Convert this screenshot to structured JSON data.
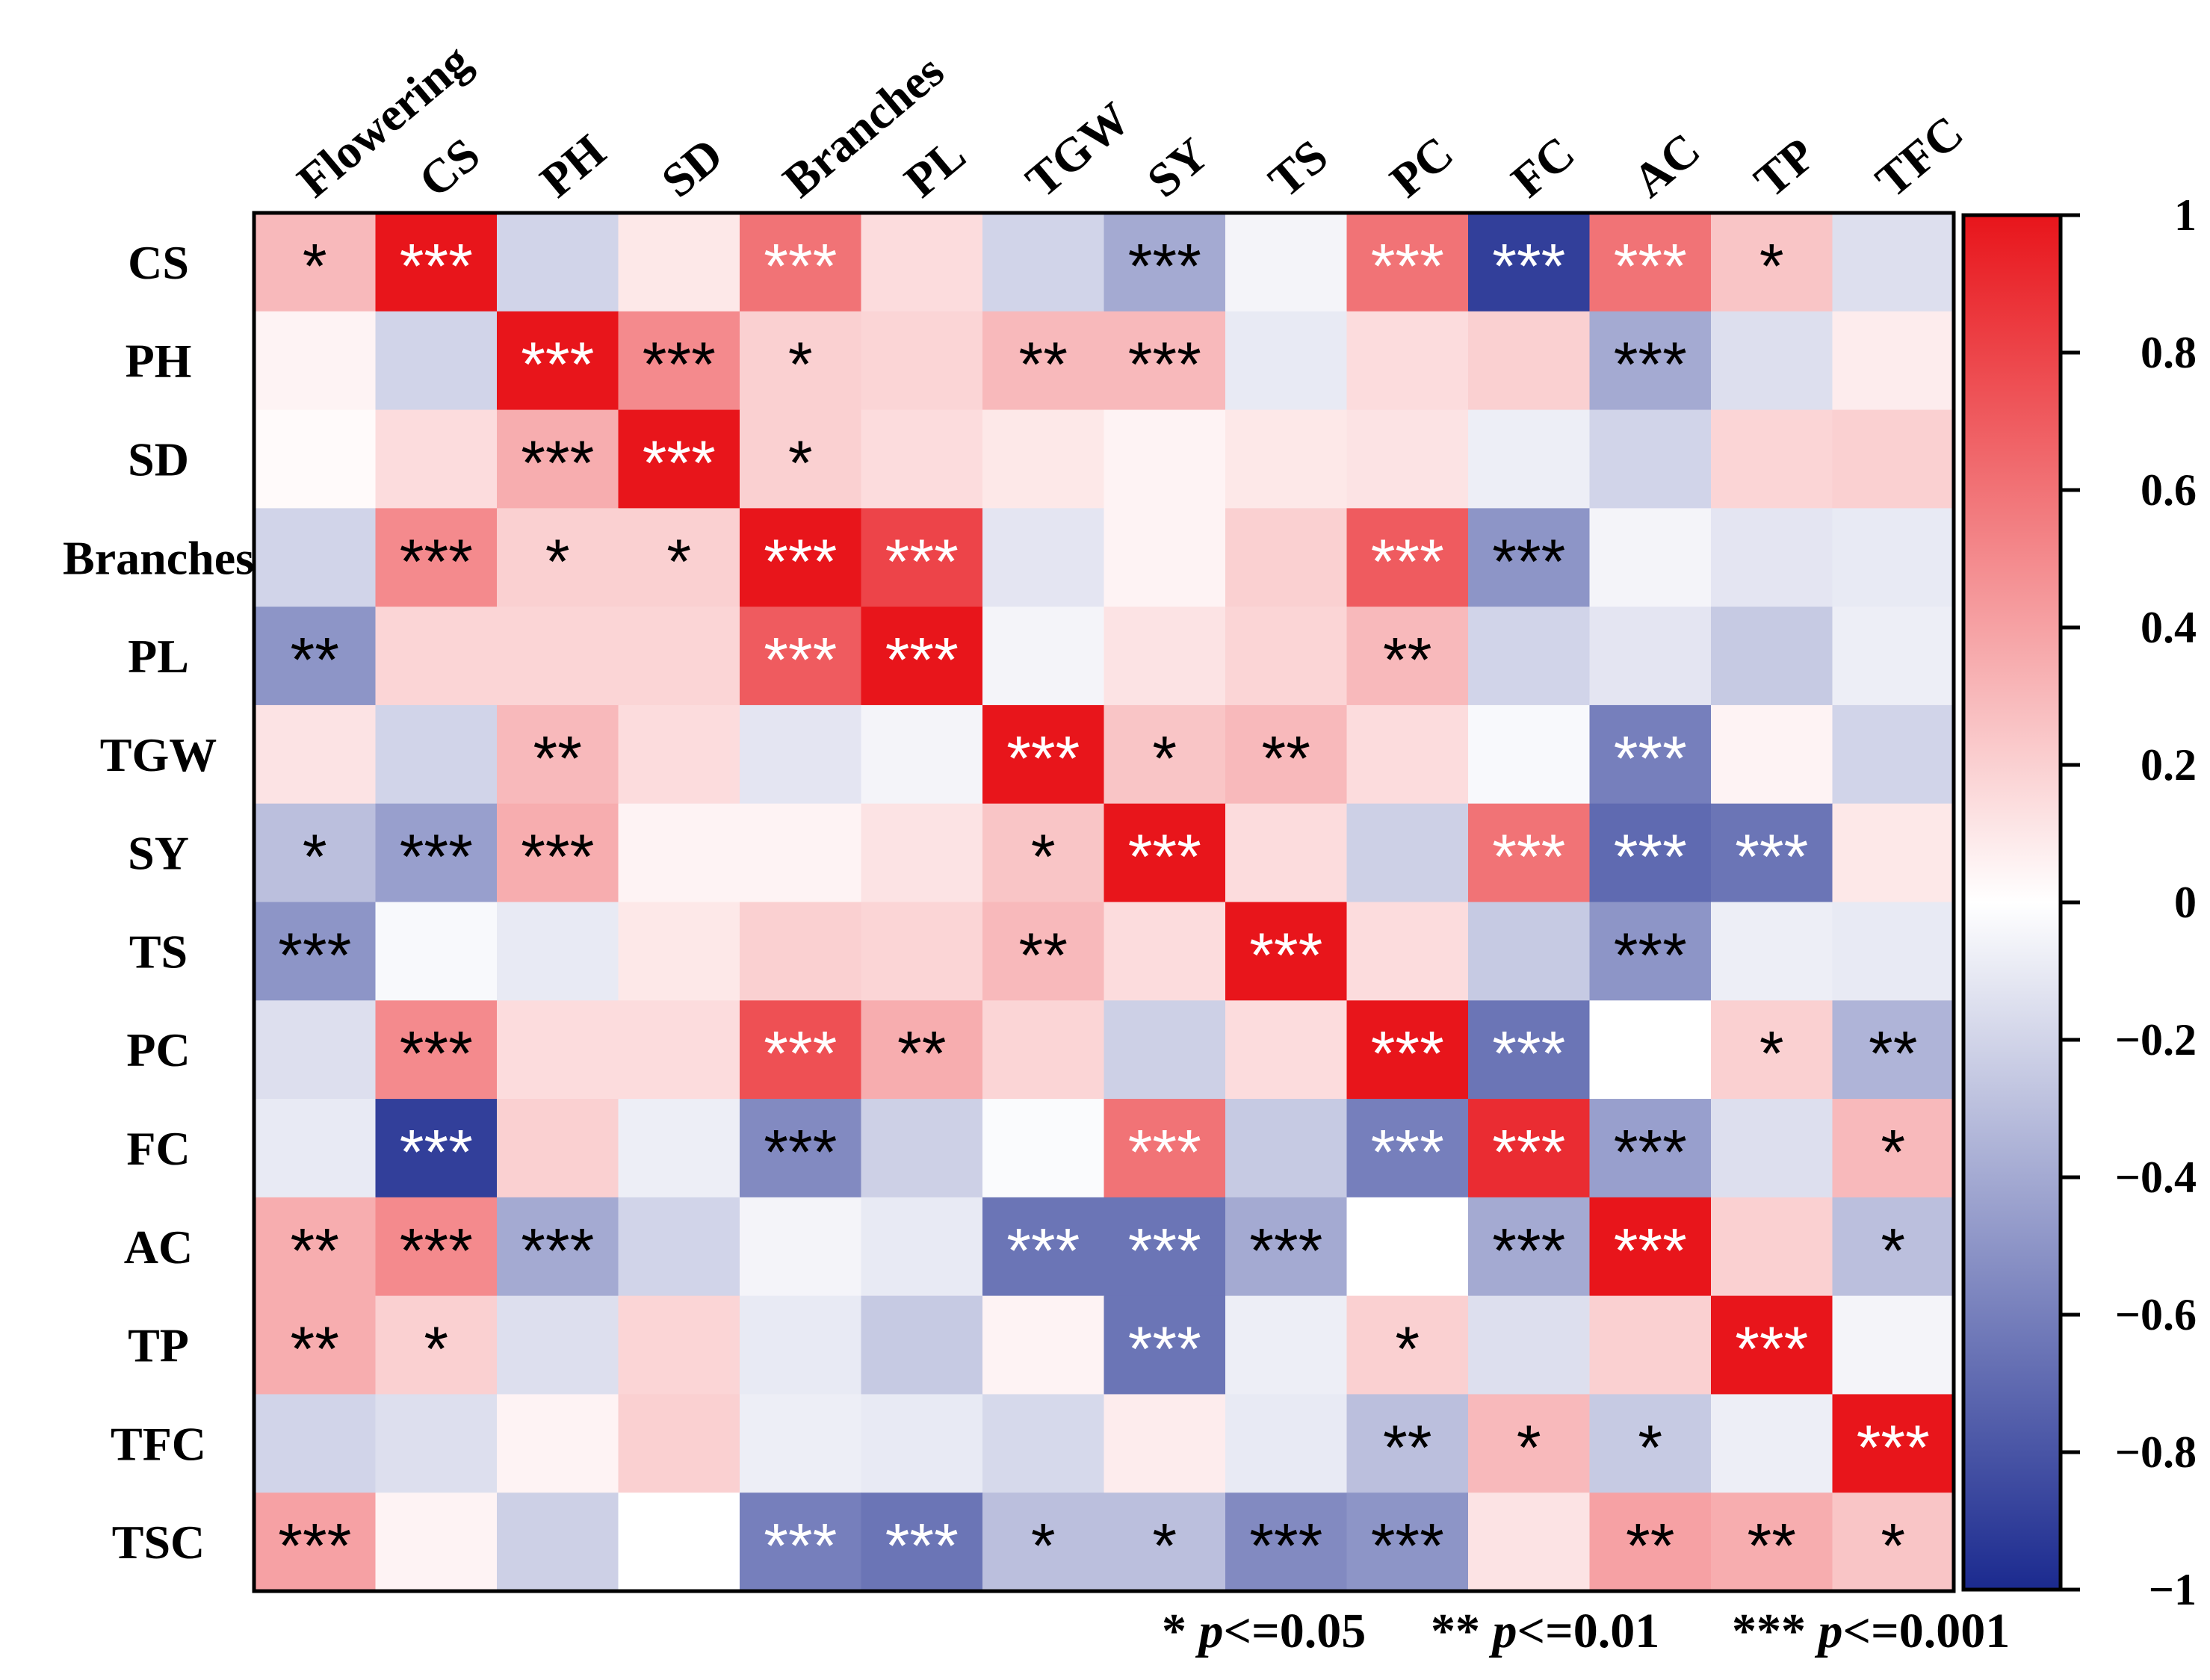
{
  "chart_data": {
    "type": "heatmap",
    "title": "",
    "columns": [
      "Flowering",
      "CS",
      "PH",
      "SD",
      "Branches",
      "PL",
      "TGW",
      "SY",
      "TS",
      "PC",
      "FC",
      "AC",
      "TP",
      "TFC"
    ],
    "rows": [
      "CS",
      "PH",
      "SD",
      "Branches",
      "PL",
      "TGW",
      "SY",
      "TS",
      "PC",
      "FC",
      "AC",
      "TP",
      "TFC",
      "TSC"
    ],
    "values": [
      [
        0.3,
        1.0,
        -0.2,
        0.1,
        0.6,
        0.15,
        -0.2,
        -0.4,
        -0.05,
        0.6,
        -0.9,
        0.6,
        0.25,
        -0.15
      ],
      [
        0.05,
        -0.2,
        1.0,
        0.5,
        0.2,
        0.18,
        0.3,
        0.3,
        -0.1,
        0.15,
        0.2,
        -0.4,
        -0.15,
        0.08
      ],
      [
        0.02,
        0.15,
        0.35,
        1.0,
        0.2,
        0.15,
        0.1,
        0.05,
        0.1,
        0.12,
        -0.08,
        -0.2,
        0.18,
        0.2
      ],
      [
        -0.2,
        0.5,
        0.2,
        0.2,
        1.0,
        0.8,
        -0.12,
        0.05,
        0.2,
        0.7,
        -0.5,
        -0.05,
        -0.12,
        -0.1
      ],
      [
        -0.5,
        0.18,
        0.18,
        0.18,
        0.7,
        1.0,
        -0.05,
        0.12,
        0.18,
        0.3,
        -0.2,
        -0.12,
        -0.25,
        -0.08
      ],
      [
        0.12,
        -0.2,
        0.3,
        0.15,
        -0.12,
        -0.05,
        1.0,
        0.25,
        0.3,
        0.15,
        -0.03,
        -0.6,
        0.05,
        -0.2
      ],
      [
        -0.3,
        -0.45,
        0.35,
        0.05,
        0.05,
        0.12,
        0.25,
        1.0,
        0.15,
        -0.22,
        0.6,
        -0.7,
        -0.65,
        0.1
      ],
      [
        -0.5,
        -0.03,
        -0.1,
        0.1,
        0.2,
        0.18,
        0.3,
        0.15,
        1.0,
        0.15,
        -0.25,
        -0.5,
        -0.08,
        -0.1
      ],
      [
        -0.15,
        0.5,
        0.15,
        0.15,
        0.75,
        0.35,
        0.18,
        -0.22,
        0.15,
        1.0,
        -0.65,
        0.0,
        0.2,
        -0.35
      ],
      [
        -0.1,
        -0.9,
        0.2,
        -0.08,
        -0.55,
        -0.22,
        -0.02,
        0.6,
        -0.25,
        -0.6,
        0.9,
        -0.45,
        -0.15,
        0.3
      ],
      [
        0.35,
        0.5,
        -0.4,
        -0.2,
        -0.05,
        -0.1,
        -0.65,
        -0.65,
        -0.4,
        0.0,
        -0.4,
        1.0,
        0.2,
        -0.3
      ],
      [
        0.35,
        0.2,
        -0.15,
        0.18,
        -0.1,
        -0.25,
        0.05,
        -0.65,
        -0.08,
        0.2,
        -0.15,
        0.2,
        1.0,
        -0.05
      ],
      [
        -0.2,
        -0.15,
        0.05,
        0.2,
        -0.08,
        -0.1,
        -0.18,
        0.08,
        -0.1,
        -0.3,
        0.3,
        -0.25,
        -0.08,
        1.0
      ],
      [
        0.4,
        0.05,
        -0.22,
        0.0,
        -0.6,
        -0.65,
        -0.3,
        -0.3,
        -0.55,
        -0.5,
        0.12,
        0.4,
        0.35,
        0.25
      ]
    ],
    "significance": [
      [
        "*",
        "***",
        "",
        "",
        "***",
        "",
        "",
        "***",
        "",
        "***",
        "***",
        "***",
        "*",
        ""
      ],
      [
        "",
        "",
        "***",
        "***",
        "*",
        "",
        "**",
        "***",
        "",
        "",
        "",
        "***",
        "",
        ""
      ],
      [
        "",
        "",
        "***",
        "***",
        "*",
        "",
        "",
        "",
        "",
        "",
        "",
        "",
        "",
        ""
      ],
      [
        "",
        "***",
        "*",
        "*",
        "***",
        "***",
        "",
        "",
        "",
        "***",
        "***",
        "",
        "",
        ""
      ],
      [
        "**",
        "",
        "",
        "",
        "***",
        "***",
        "",
        "",
        "",
        "**",
        "",
        "",
        "",
        ""
      ],
      [
        "",
        "",
        "**",
        "",
        "",
        "",
        "***",
        "*",
        "**",
        "",
        "",
        "***",
        "",
        ""
      ],
      [
        "*",
        "***",
        "***",
        "",
        "",
        "",
        "*",
        "***",
        "",
        "",
        "***",
        "***",
        "***",
        ""
      ],
      [
        "***",
        "",
        "",
        "",
        "",
        "",
        "**",
        "",
        "***",
        "",
        "",
        "***",
        "",
        ""
      ],
      [
        "",
        "***",
        "",
        "",
        "***",
        "**",
        "",
        "",
        "",
        "***",
        "***",
        "",
        "*",
        "**"
      ],
      [
        "",
        "***",
        "",
        "",
        "***",
        "",
        "",
        "***",
        "",
        "***",
        "***",
        "***",
        "",
        "*"
      ],
      [
        "**",
        "***",
        "***",
        "",
        "",
        "",
        "***",
        "***",
        "***",
        "",
        "***",
        "***",
        "",
        "*"
      ],
      [
        "**",
        "*",
        "",
        "",
        "",
        "",
        "",
        "***",
        "",
        "*",
        "",
        "",
        "***",
        ""
      ],
      [
        "",
        "",
        "",
        "",
        "",
        "",
        "",
        "",
        "",
        "**",
        "*",
        "*",
        "",
        "***"
      ],
      [
        "***",
        "",
        "",
        "",
        "***",
        "***",
        "*",
        "*",
        "***",
        "***",
        "",
        "**",
        "**",
        "*"
      ]
    ],
    "colorbar": {
      "range": [
        -1,
        1
      ],
      "ticks": [
        1,
        0.8,
        0.6,
        0.4,
        0.2,
        0,
        -0.2,
        -0.4,
        -0.6,
        -0.8,
        -1
      ],
      "tick_labels": [
        "1",
        "0.8",
        "0.6",
        "0.4",
        "0.2",
        "0",
        "−0.2",
        "−0.4",
        "−0.6",
        "−0.8",
        "−1"
      ],
      "colors": {
        "negative": "#1b2a8f",
        "zero": "#ffffff",
        "positive": "#e8151b"
      }
    },
    "legend": [
      {
        "symbol": "*",
        "p_label": "p",
        "text": "<=0.05"
      },
      {
        "symbol": "**",
        "p_label": "p",
        "text": "<=0.01"
      },
      {
        "symbol": "***",
        "p_label": "p",
        "text": "<=0.001"
      }
    ]
  }
}
